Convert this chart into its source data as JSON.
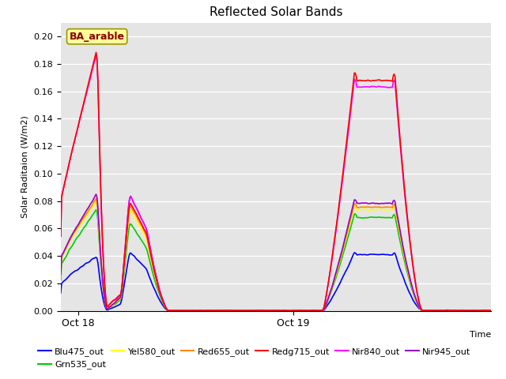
{
  "title": "Reflected Solar Bands",
  "ylabel": "Solar Raditaion (W/m2)",
  "xlabel": "Time",
  "background_color": "#e5e5e5",
  "ylim": [
    0.0,
    0.21
  ],
  "yticks": [
    0.0,
    0.02,
    0.04,
    0.06,
    0.08,
    0.1,
    0.12,
    0.14,
    0.16,
    0.18,
    0.2
  ],
  "annotation_text": "BA_arable",
  "annotation_color": "#8B0000",
  "annotation_bg": "#ffff99",
  "annotation_border": "#999900",
  "series": {
    "Blu475_out": {
      "color": "#0000ff",
      "lw": 1.2
    },
    "Grn535_out": {
      "color": "#00cc00",
      "lw": 1.2
    },
    "Yel580_out": {
      "color": "#ffff00",
      "lw": 1.2
    },
    "Red655_out": {
      "color": "#ff8800",
      "lw": 1.2
    },
    "Redg715_out": {
      "color": "#ff0000",
      "lw": 1.2
    },
    "Nir840_out": {
      "color": "#ff00ff",
      "lw": 1.2
    },
    "Nir945_out": {
      "color": "#9900cc",
      "lw": 1.2
    }
  }
}
